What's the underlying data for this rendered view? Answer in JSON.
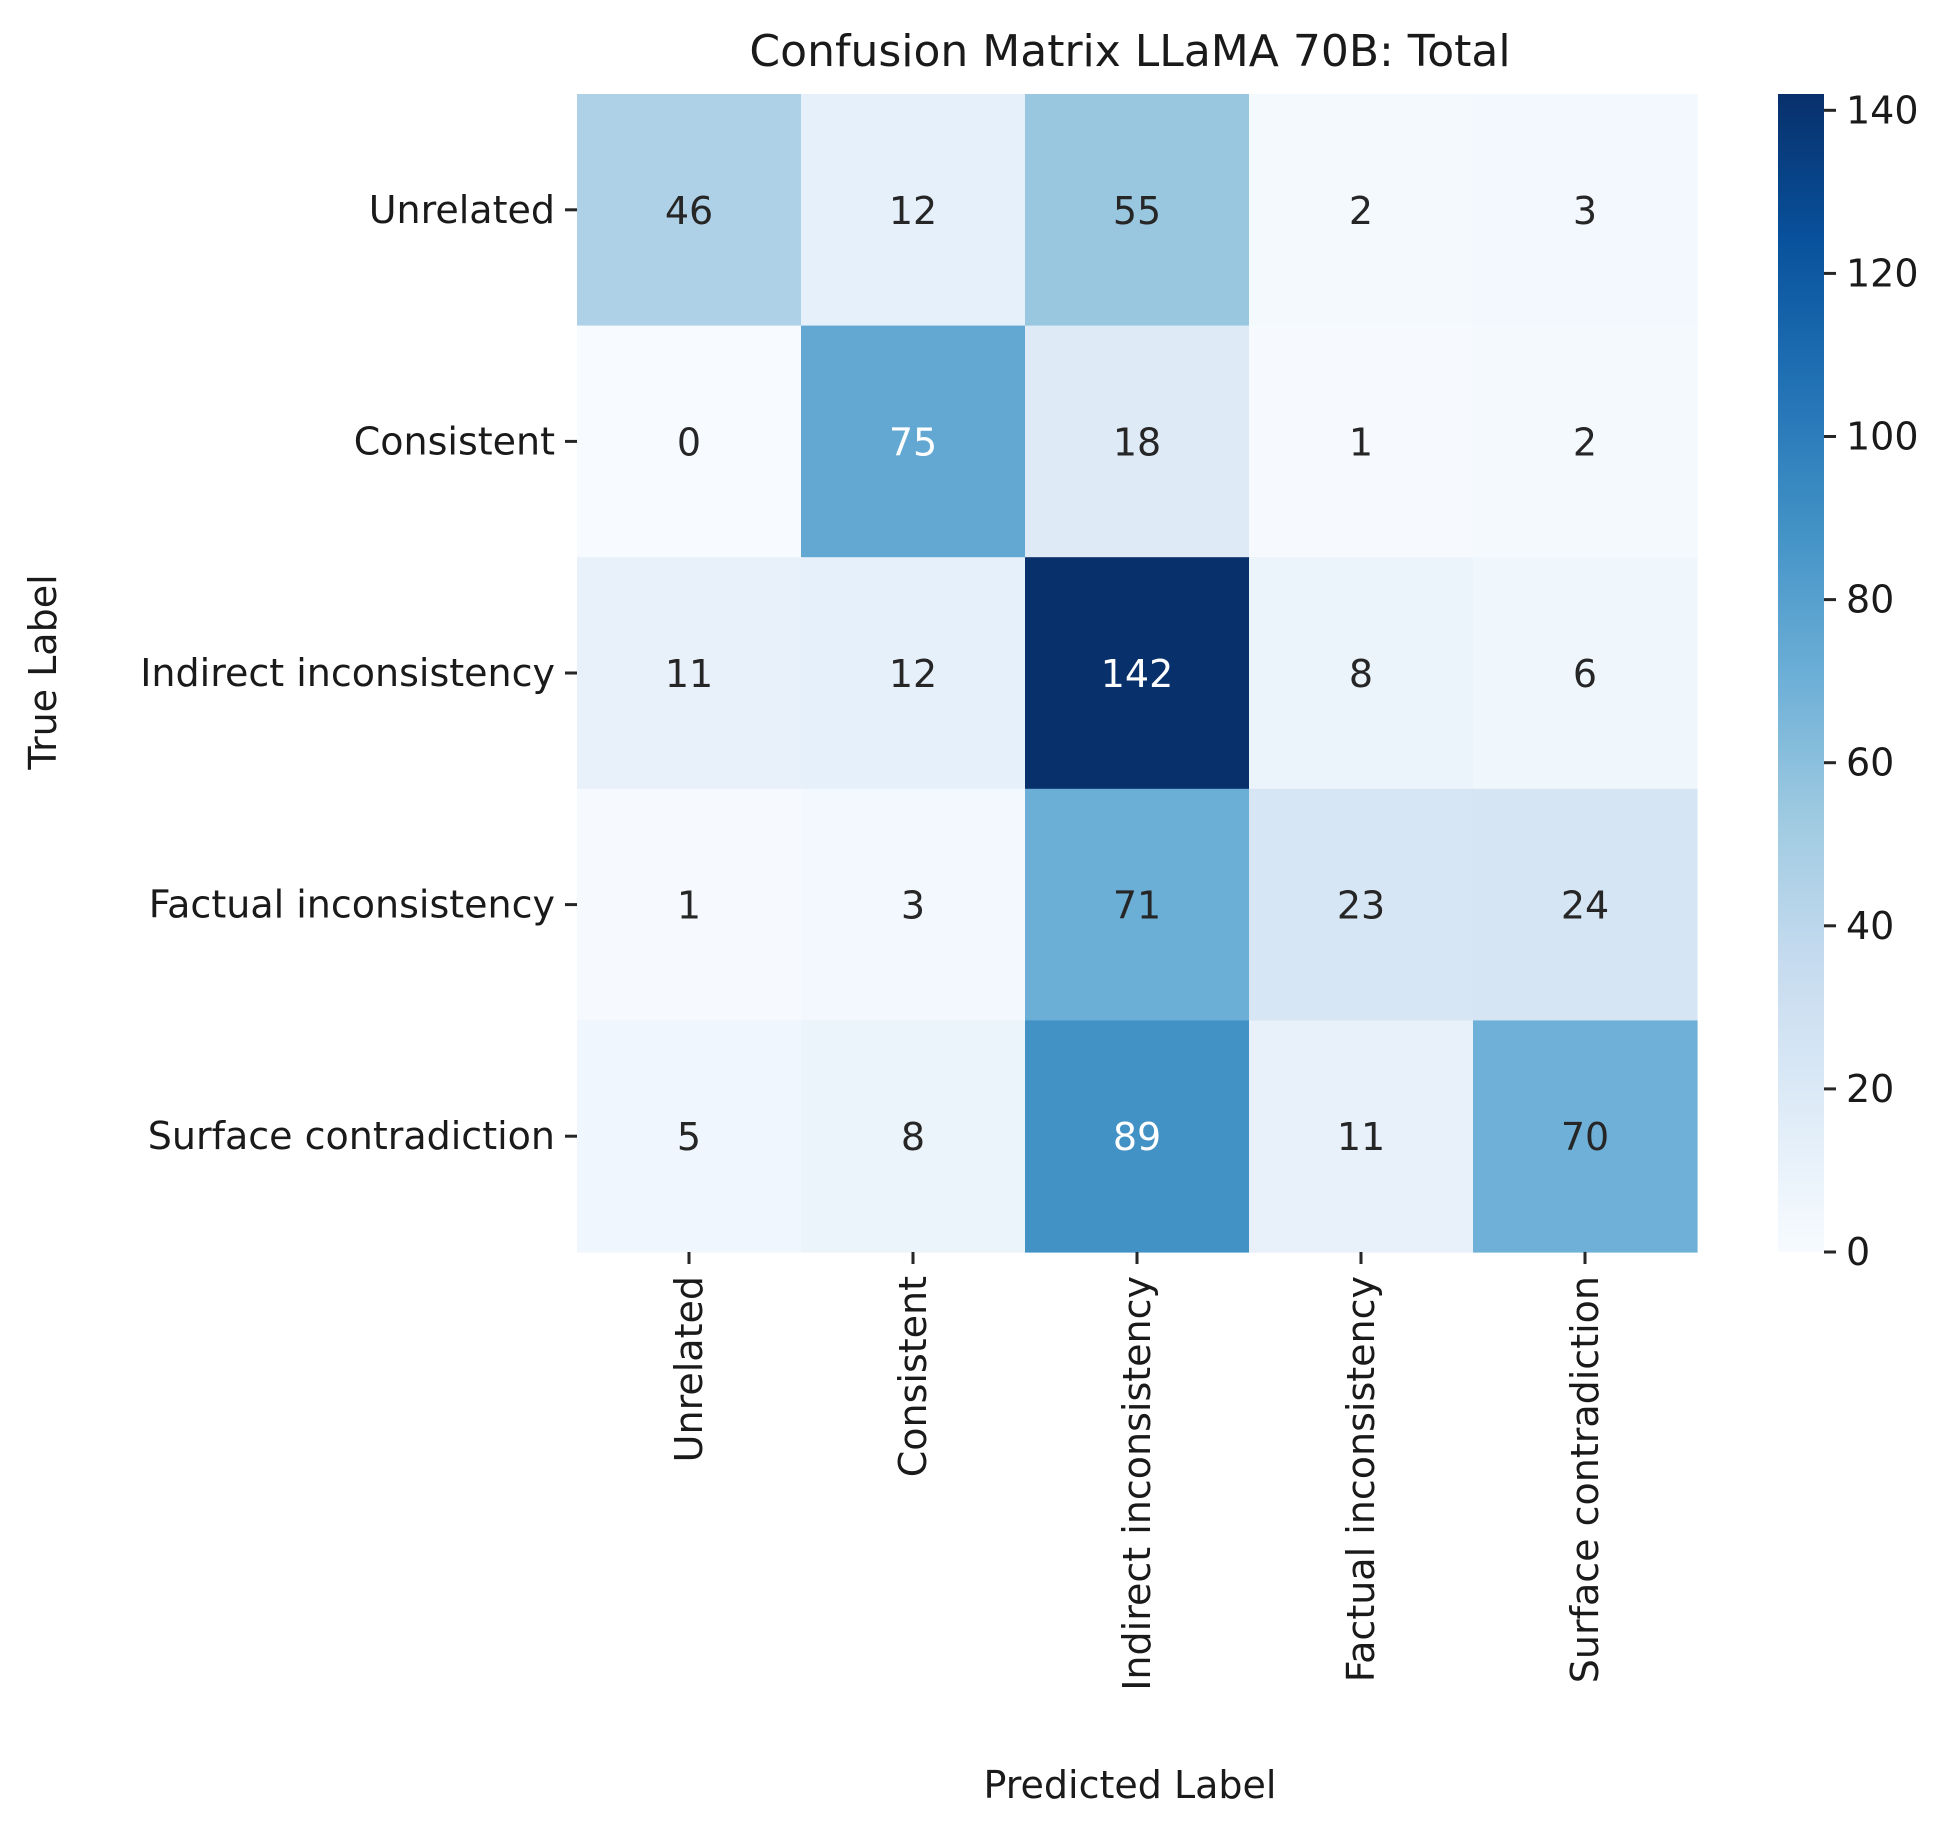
{
  "chart_data": {
    "type": "heatmap",
    "title": "Confusion Matrix LLaMA 70B: Total",
    "xlabel": "Predicted Label",
    "ylabel": "True Label",
    "x_categories": [
      "Unrelated",
      "Consistent",
      "Indirect inconsistency",
      "Factual inconsistency",
      "Surface contradiction"
    ],
    "y_categories": [
      "Unrelated",
      "Consistent",
      "Indirect inconsistency",
      "Factual inconsistency",
      "Surface contradiction"
    ],
    "values": [
      [
        46,
        12,
        55,
        2,
        3
      ],
      [
        0,
        75,
        18,
        1,
        2
      ],
      [
        11,
        12,
        142,
        8,
        6
      ],
      [
        1,
        3,
        71,
        23,
        24
      ],
      [
        5,
        8,
        89,
        11,
        70
      ]
    ],
    "colorbar": {
      "min": 0,
      "max": 142,
      "ticks": [
        0,
        20,
        40,
        60,
        80,
        100,
        120,
        140
      ],
      "colormap": "Blues"
    }
  }
}
